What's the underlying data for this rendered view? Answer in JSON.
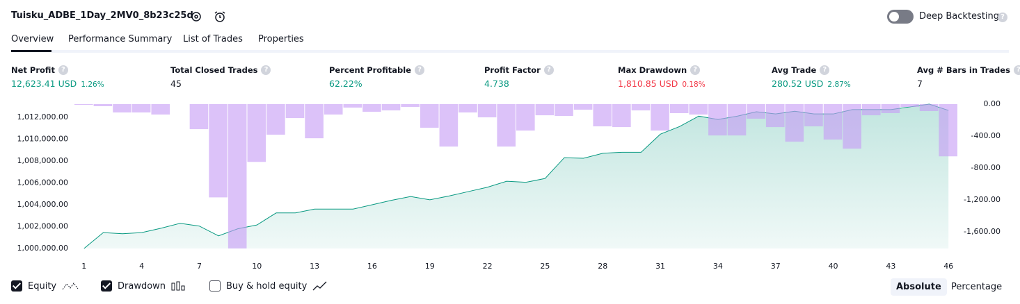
{
  "header": {
    "title": "Tuisku_ADBE_1Day_2MV0_8b23c25d",
    "toggle": "Deep Backtesting",
    "tabs": [
      "Overview",
      "Performance Summary",
      "List of Trades",
      "Properties"
    ]
  },
  "metrics": [
    {
      "label": "Net Profit",
      "value": "12,623.41 USD",
      "pct": "1.26%",
      "tone": "green"
    },
    {
      "label": "Total Closed Trades",
      "value": "45",
      "tone": "plain"
    },
    {
      "label": "Percent Profitable",
      "value": "62.22%",
      "tone": "green"
    },
    {
      "label": "Profit Factor",
      "value": "4.738",
      "tone": "green"
    },
    {
      "label": "Max Drawdown",
      "value": "1,810.85 USD",
      "pct": "0.18%",
      "tone": "red"
    },
    {
      "label": "Avg Trade",
      "value": "280.52 USD",
      "pct": "2.87%",
      "tone": "green"
    },
    {
      "label": "Avg # Bars in Trades",
      "value": "7",
      "tone": "plain"
    }
  ],
  "chart_data": {
    "type": "combo",
    "x": [
      1,
      2,
      3,
      4,
      5,
      6,
      7,
      8,
      9,
      10,
      11,
      12,
      13,
      14,
      15,
      16,
      17,
      18,
      19,
      20,
      21,
      22,
      23,
      24,
      25,
      26,
      27,
      28,
      29,
      30,
      31,
      32,
      33,
      34,
      35,
      36,
      37,
      38,
      39,
      40,
      41,
      42,
      43,
      44,
      45,
      46
    ],
    "xlim": [
      0.5,
      46.5
    ],
    "xticks": [
      1,
      4,
      7,
      10,
      13,
      16,
      19,
      22,
      25,
      28,
      31,
      34,
      37,
      40,
      43,
      46
    ],
    "ylim": [
      1000000,
      1013200
    ],
    "yticks": [
      {
        "value": 1000000,
        "label": "1,000,000.00"
      },
      {
        "value": 1002000,
        "label": "1,002,000.00"
      },
      {
        "value": 1004000,
        "label": "1,004,000.00"
      },
      {
        "value": 1006000,
        "label": "1,006,000.00"
      },
      {
        "value": 1008000,
        "label": "1,008,000.00"
      },
      {
        "value": 1010000,
        "label": "1,010,000.00"
      },
      {
        "value": 1012000,
        "label": "1,012,000.00"
      }
    ],
    "y2lim": [
      -1810.85,
      0
    ],
    "y2ticks": [
      {
        "value": 0,
        "label": "0.00"
      },
      {
        "value": -400,
        "label": "-400.00"
      },
      {
        "value": -800,
        "label": "-800.00"
      },
      {
        "value": -1200,
        "label": "-1,200.00"
      },
      {
        "value": -1600,
        "label": "-1,600.00"
      }
    ],
    "series": [
      {
        "name": "Equity",
        "kind": "area",
        "color": "#089981",
        "axis": "y",
        "values": [
          1000000,
          1001450,
          1001350,
          1001450,
          1001850,
          1002300,
          1002050,
          1001150,
          1001800,
          1002150,
          1003250,
          1003250,
          1003600,
          1003600,
          1003600,
          1004000,
          1004400,
          1004750,
          1004450,
          1004800,
          1005200,
          1005600,
          1006150,
          1006050,
          1006400,
          1008300,
          1008250,
          1008700,
          1008800,
          1008800,
          1010450,
          1011150,
          1012100,
          1011800,
          1012100,
          1012500,
          1012300,
          1012550,
          1012300,
          1012300,
          1012700,
          1012700,
          1012700,
          1012950,
          1013200,
          1012623.41
        ]
      },
      {
        "name": "Drawdown",
        "kind": "bar",
        "color": "#c79cf5",
        "axis": "y2",
        "values": [
          -9,
          -26,
          -105,
          -105,
          -131,
          0,
          -314,
          -1170,
          -1810.85,
          -725,
          -384,
          -175,
          -428,
          -131,
          -44,
          -96,
          -79,
          -35,
          -297,
          -533,
          -105,
          -166,
          -533,
          -332,
          -140,
          -148,
          -70,
          -279,
          -288,
          -79,
          -332,
          -113,
          -131,
          -393,
          -393,
          -183,
          -288,
          -471,
          -279,
          -445,
          -559,
          -140,
          -113,
          -35,
          -87,
          -655
        ]
      }
    ]
  },
  "legend_extra": "Buy & hold equity",
  "modes": [
    "Absolute",
    "Percentage"
  ]
}
